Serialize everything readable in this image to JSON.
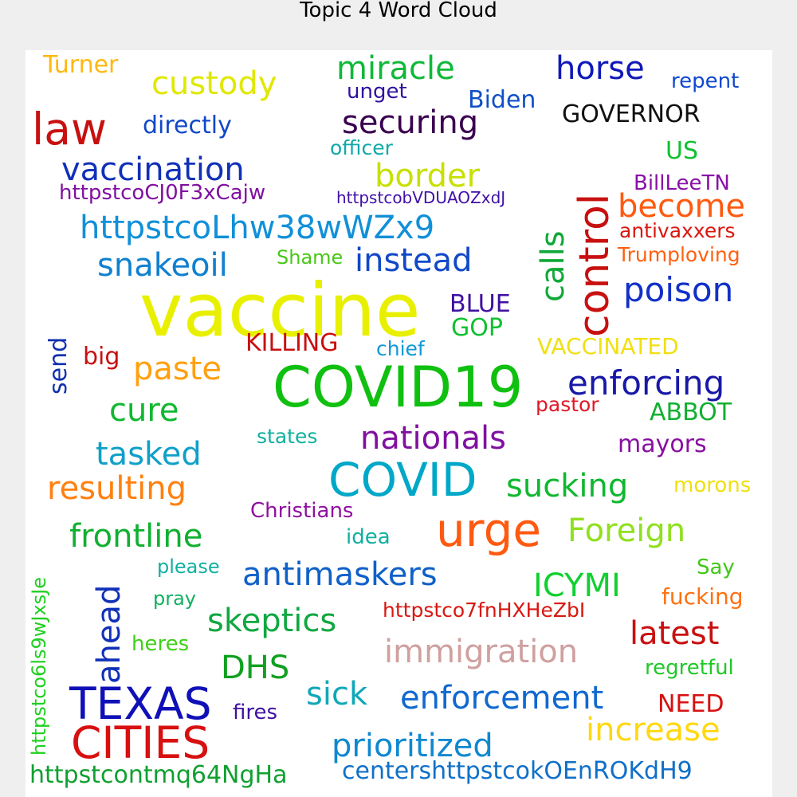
{
  "title": "Topic 4 Word Cloud",
  "words": [
    {
      "text": "vaccine",
      "color": "#e8f000"
    },
    {
      "text": "COVID19",
      "color": "#10c010"
    },
    {
      "text": "control",
      "color": "#c81010"
    },
    {
      "text": "COVID",
      "color": "#00a8c8"
    },
    {
      "text": "urge",
      "color": "#ff5a10"
    },
    {
      "text": "TEXAS",
      "color": "#1010b8"
    },
    {
      "text": "CITIES",
      "color": "#d81010"
    },
    {
      "text": "law",
      "color": "#c81010"
    },
    {
      "text": "nationals",
      "color": "#8010a0"
    },
    {
      "text": "enforcing",
      "color": "#1818a8"
    },
    {
      "text": "poison",
      "color": "#1030c8"
    },
    {
      "text": "custody",
      "color": "#e0e800"
    },
    {
      "text": "miracle",
      "color": "#10b838"
    },
    {
      "text": "horse",
      "color": "#1018b8"
    },
    {
      "text": "securing",
      "color": "#3a0050"
    },
    {
      "text": "vaccination",
      "color": "#1030b8"
    },
    {
      "text": "border",
      "color": "#c8e000"
    },
    {
      "text": "httpstcoLhw38wWZx9",
      "color": "#1090d8"
    },
    {
      "text": "become",
      "color": "#ff5a10"
    },
    {
      "text": "calls",
      "color": "#10a838"
    },
    {
      "text": "instead",
      "color": "#1048c8"
    },
    {
      "text": "snakeoil",
      "color": "#1080d0"
    },
    {
      "text": "paste",
      "color": "#ffa010"
    },
    {
      "text": "cure",
      "color": "#10b830"
    },
    {
      "text": "tasked",
      "color": "#10a0c8"
    },
    {
      "text": "resulting",
      "color": "#ff8010"
    },
    {
      "text": "sucking",
      "color": "#10b830"
    },
    {
      "text": "frontline",
      "color": "#10b030"
    },
    {
      "text": "Foreign",
      "color": "#90e020"
    },
    {
      "text": "antimaskers",
      "color": "#1060c8"
    },
    {
      "text": "ICYMI",
      "color": "#10d030"
    },
    {
      "text": "skeptics",
      "color": "#10a840"
    },
    {
      "text": "latest",
      "color": "#c81010"
    },
    {
      "text": "immigration",
      "color": "#d0a0a0"
    },
    {
      "text": "ahead",
      "color": "#1030b8"
    },
    {
      "text": "DHS",
      "color": "#10a020"
    },
    {
      "text": "sick",
      "color": "#10a8b8"
    },
    {
      "text": "enforcement",
      "color": "#1068d0"
    },
    {
      "text": "increase",
      "color": "#ffd810"
    },
    {
      "text": "prioritized",
      "color": "#1088d0"
    },
    {
      "text": "httpstcontmq64NgHa",
      "color": "#10a030"
    },
    {
      "text": "centershttpstcokOEnROKdH9",
      "color": "#1070c8"
    },
    {
      "text": "directly",
      "color": "#1048c8"
    },
    {
      "text": "Turner",
      "color": "#ffb810"
    },
    {
      "text": "unget",
      "color": "#3010a0"
    },
    {
      "text": "Biden",
      "color": "#1050c8"
    },
    {
      "text": "repent",
      "color": "#1048d0"
    },
    {
      "text": "GOVERNOR",
      "color": "#101010"
    },
    {
      "text": "officer",
      "color": "#10a8a8"
    },
    {
      "text": "US",
      "color": "#10c030"
    },
    {
      "text": "httpstcoCJ0F3xCajw",
      "color": "#8010a0"
    },
    {
      "text": "httpstcobVDUAOZxdJ",
      "color": "#4010a8"
    },
    {
      "text": "BillLeeTN",
      "color": "#8810a8"
    },
    {
      "text": "antivaxxers",
      "color": "#d81810"
    },
    {
      "text": "Trumploving",
      "color": "#ff6010"
    },
    {
      "text": "Shame",
      "color": "#48c818"
    },
    {
      "text": "BLUE",
      "color": "#4010a0"
    },
    {
      "text": "GOP",
      "color": "#10c030"
    },
    {
      "text": "send",
      "color": "#1030b0"
    },
    {
      "text": "big",
      "color": "#c81010"
    },
    {
      "text": "KILLING",
      "color": "#c81010"
    },
    {
      "text": "chief",
      "color": "#1098d8"
    },
    {
      "text": "VACCINATED",
      "color": "#f0e010"
    },
    {
      "text": "pastor",
      "color": "#e01828"
    },
    {
      "text": "ABBOT",
      "color": "#10b030"
    },
    {
      "text": "states",
      "color": "#10b0a0"
    },
    {
      "text": "mayors",
      "color": "#8810a0"
    },
    {
      "text": "morons",
      "color": "#f0e010"
    },
    {
      "text": "Christians",
      "color": "#9010a0"
    },
    {
      "text": "idea",
      "color": "#10b0a0"
    },
    {
      "text": "httpstco6ls9wJxsJe",
      "color": "#20d020"
    },
    {
      "text": "please",
      "color": "#10b0a0"
    },
    {
      "text": "Say",
      "color": "#40c818"
    },
    {
      "text": "pray",
      "color": "#10b060"
    },
    {
      "text": "fucking",
      "color": "#ff7010"
    },
    {
      "text": "httpstco7fnHXHeZbI",
      "color": "#d81810"
    },
    {
      "text": "heres",
      "color": "#40d018"
    },
    {
      "text": "regretful",
      "color": "#20c828"
    },
    {
      "text": "fires",
      "color": "#4010a0"
    },
    {
      "text": "NEED",
      "color": "#d81010"
    }
  ]
}
